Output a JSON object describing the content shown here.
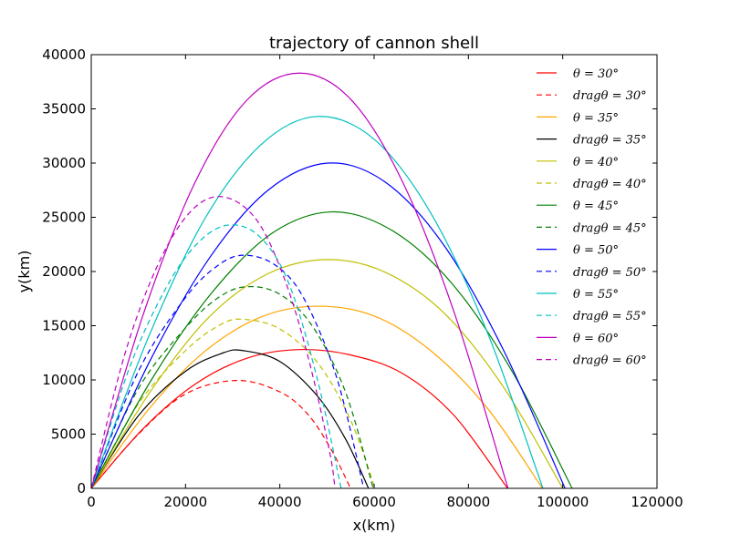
{
  "chart_data": {
    "type": "line",
    "title": "trajectory of cannon shell",
    "xlabel": "x(km)",
    "ylabel": "y(km)",
    "xlim": [
      0,
      120000
    ],
    "ylim": [
      0,
      40000
    ],
    "xticks": [
      0,
      20000,
      40000,
      60000,
      80000,
      100000,
      120000
    ],
    "yticks": [
      0,
      5000,
      10000,
      15000,
      20000,
      25000,
      30000,
      35000,
      40000
    ],
    "grid": false,
    "legend_position": "top-right",
    "series": [
      {
        "name": "θ = 30°",
        "color": "#ff0000",
        "style": "solid",
        "points": [
          [
            0,
            0
          ],
          [
            11000,
            5500
          ],
          [
            22000,
            9600
          ],
          [
            33000,
            12000
          ],
          [
            44000,
            12800
          ],
          [
            55000,
            12300
          ],
          [
            66000,
            10600
          ],
          [
            77000,
            6700
          ],
          [
            88300,
            0
          ]
        ]
      },
      {
        "name": "dragθ = 30°",
        "color": "#ff0000",
        "style": "dashed",
        "points": [
          [
            0,
            0
          ],
          [
            10000,
            5000
          ],
          [
            20000,
            8700
          ],
          [
            30800,
            9950
          ],
          [
            40000,
            8900
          ],
          [
            46000,
            6800
          ],
          [
            51000,
            3500
          ],
          [
            55000,
            0
          ]
        ]
      },
      {
        "name": "θ = 35°",
        "color": "#ffa500",
        "style": "solid",
        "points": [
          [
            0,
            0
          ],
          [
            12000,
            7200
          ],
          [
            24000,
            12600
          ],
          [
            36000,
            15800
          ],
          [
            47800,
            16800
          ],
          [
            60000,
            15900
          ],
          [
            72000,
            12700
          ],
          [
            84000,
            7400
          ],
          [
            95700,
            0
          ]
        ]
      },
      {
        "name": "dragθ = 35°",
        "color": "#000000",
        "style": "solid",
        "points": [
          [
            0,
            0
          ],
          [
            10000,
            6700
          ],
          [
            20000,
            10800
          ],
          [
            28000,
            12500
          ],
          [
            32300,
            12700
          ],
          [
            40000,
            11700
          ],
          [
            48000,
            8500
          ],
          [
            54000,
            4500
          ],
          [
            58800,
            0
          ]
        ]
      },
      {
        "name": "θ = 40°",
        "color": "#bfbf00",
        "style": "solid",
        "points": [
          [
            0,
            0
          ],
          [
            12500,
            8900
          ],
          [
            25000,
            15800
          ],
          [
            37500,
            19800
          ],
          [
            50200,
            21100
          ],
          [
            62500,
            19900
          ],
          [
            75000,
            16100
          ],
          [
            87500,
            9300
          ],
          [
            100000,
            0
          ]
        ]
      },
      {
        "name": "dragθ = 40°",
        "color": "#bfbf00",
        "style": "dashed",
        "points": [
          [
            0,
            0
          ],
          [
            10000,
            7800
          ],
          [
            20000,
            12700
          ],
          [
            27000,
            15000
          ],
          [
            32000,
            15600
          ],
          [
            40000,
            14700
          ],
          [
            48000,
            11600
          ],
          [
            55000,
            6300
          ],
          [
            60200,
            0
          ]
        ]
      },
      {
        "name": "θ = 45°",
        "color": "#008000",
        "style": "solid",
        "points": [
          [
            0,
            0
          ],
          [
            12750,
            10000
          ],
          [
            25500,
            18000
          ],
          [
            38250,
            23500
          ],
          [
            51000,
            25500
          ],
          [
            63750,
            23800
          ],
          [
            76500,
            18900
          ],
          [
            89250,
            10800
          ],
          [
            102000,
            0
          ]
        ]
      },
      {
        "name": "dragθ = 45°",
        "color": "#008000",
        "style": "dashed",
        "points": [
          [
            0,
            0
          ],
          [
            10000,
            9200
          ],
          [
            20000,
            14800
          ],
          [
            27000,
            17600
          ],
          [
            33000,
            18600
          ],
          [
            40000,
            17900
          ],
          [
            47000,
            14900
          ],
          [
            54000,
            8800
          ],
          [
            59800,
            0
          ]
        ]
      },
      {
        "name": "θ = 50°",
        "color": "#0000ff",
        "style": "solid",
        "points": [
          [
            0,
            0
          ],
          [
            12500,
            11800
          ],
          [
            25000,
            21200
          ],
          [
            37500,
            27500
          ],
          [
            50200,
            30000
          ],
          [
            62500,
            28200
          ],
          [
            75000,
            22300
          ],
          [
            87500,
            12700
          ],
          [
            100500,
            0
          ]
        ]
      },
      {
        "name": "dragθ = 50°",
        "color": "#0000ff",
        "style": "dashed",
        "points": [
          [
            0,
            0
          ],
          [
            10000,
            10800
          ],
          [
            20000,
            17600
          ],
          [
            27000,
            20600
          ],
          [
            32500,
            21500
          ],
          [
            39000,
            20600
          ],
          [
            45000,
            17600
          ],
          [
            52000,
            10300
          ],
          [
            57800,
            0
          ]
        ]
      },
      {
        "name": "θ = 55°",
        "color": "#00bfbf",
        "style": "solid",
        "points": [
          [
            0,
            0
          ],
          [
            12000,
            13800
          ],
          [
            24000,
            24800
          ],
          [
            36000,
            31700
          ],
          [
            47900,
            34300
          ],
          [
            60000,
            32200
          ],
          [
            72000,
            25400
          ],
          [
            84000,
            14400
          ],
          [
            95800,
            0
          ]
        ]
      },
      {
        "name": "dragθ = 55°",
        "color": "#00bfbf",
        "style": "dashed",
        "points": [
          [
            0,
            0
          ],
          [
            8000,
            11000
          ],
          [
            16000,
            18600
          ],
          [
            23000,
            22800
          ],
          [
            29500,
            24300
          ],
          [
            36000,
            23100
          ],
          [
            42000,
            18800
          ],
          [
            48000,
            10000
          ],
          [
            53000,
            0
          ]
        ]
      },
      {
        "name": "θ = 60°",
        "color": "#bf00bf",
        "style": "solid",
        "points": [
          [
            0,
            0
          ],
          [
            11000,
            16000
          ],
          [
            22000,
            28200
          ],
          [
            33000,
            35800
          ],
          [
            44100,
            38300
          ],
          [
            55000,
            35900
          ],
          [
            66000,
            28300
          ],
          [
            77000,
            16200
          ],
          [
            88400,
            0
          ]
        ]
      },
      {
        "name": "dragθ = 60°",
        "color": "#bf00bf",
        "style": "dashed",
        "points": [
          [
            0,
            0
          ],
          [
            7000,
            12200
          ],
          [
            14000,
            20500
          ],
          [
            21000,
            25500
          ],
          [
            27800,
            26900
          ],
          [
            35000,
            24800
          ],
          [
            41000,
            19300
          ],
          [
            46000,
            12100
          ],
          [
            50500,
            3500
          ],
          [
            51700,
            0
          ]
        ]
      }
    ]
  }
}
